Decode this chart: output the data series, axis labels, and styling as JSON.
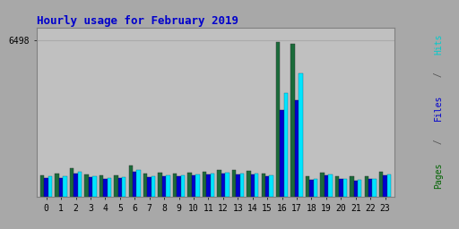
{
  "title": "Hourly usage for February 2019",
  "hours": [
    0,
    1,
    2,
    3,
    4,
    5,
    6,
    7,
    8,
    9,
    10,
    11,
    12,
    13,
    14,
    15,
    16,
    17,
    18,
    19,
    20,
    21,
    22,
    23
  ],
  "ytick_label": "6498",
  "ytick_value": 6498,
  "pages": [
    900,
    960,
    1200,
    920,
    880,
    900,
    1300,
    960,
    1000,
    960,
    1020,
    1060,
    1120,
    1100,
    1080,
    980,
    6400,
    6350,
    850,
    1020,
    870,
    840,
    870,
    1050
  ],
  "files": [
    780,
    780,
    980,
    820,
    750,
    780,
    1050,
    820,
    850,
    850,
    880,
    920,
    980,
    940,
    940,
    870,
    3600,
    4000,
    710,
    880,
    730,
    690,
    730,
    910
  ],
  "hits": [
    840,
    840,
    1050,
    870,
    800,
    830,
    1130,
    870,
    900,
    880,
    920,
    960,
    1020,
    980,
    980,
    900,
    4300,
    5100,
    760,
    920,
    760,
    720,
    760,
    950
  ],
  "color_pages": "#1a6b3a",
  "color_files": "#0000cd",
  "color_hits": "#00e5ff",
  "bg_color": "#a8a8a8",
  "plot_bg": "#c0c0c0",
  "title_color": "#0000cc",
  "grid_color": "#aaaaaa",
  "border_color": "#808080",
  "bar_width": 0.27,
  "ylabel_parts": [
    {
      "text": "Pages",
      "color": "#006400"
    },
    {
      "text": " / ",
      "color": "#555555"
    },
    {
      "text": "Files",
      "color": "#0000cd"
    },
    {
      "text": " / ",
      "color": "#555555"
    },
    {
      "text": "Hits",
      "color": "#00cccc"
    }
  ]
}
